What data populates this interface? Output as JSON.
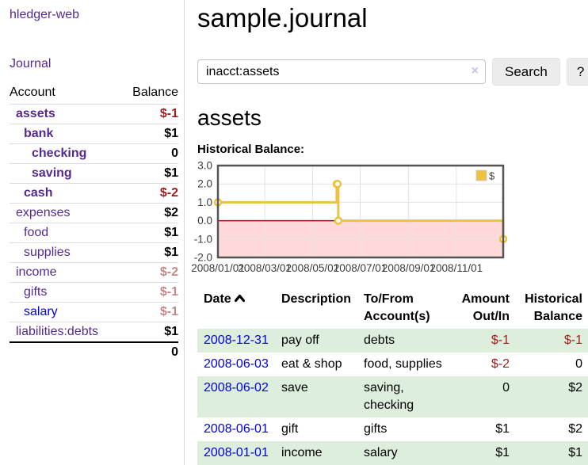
{
  "app": {
    "brand": "hledger-web",
    "nav_journal": "Journal"
  },
  "colors": {
    "link_purple": "#552a90",
    "link_blue": "#0000e6",
    "negative_strong": "#9e1c1c",
    "negative_muted": "#c28888",
    "row_stripe_green": "#ddeedd",
    "chart_line_gold": "#edc240",
    "chart_fill_pink": "#ffd9d9",
    "chart_zero_line": "#8b1010"
  },
  "sidebar": {
    "headers": {
      "account": "Account",
      "balance": "Balance"
    },
    "accounts": [
      {
        "name": "assets",
        "depth": 1,
        "emphasis": true,
        "link": "purple",
        "balance": "$-1",
        "balance_tone": "negative"
      },
      {
        "name": "bank",
        "depth": 2,
        "emphasis": true,
        "link": "purple",
        "balance": "$1",
        "balance_tone": "normal"
      },
      {
        "name": "checking",
        "depth": 3,
        "emphasis": true,
        "link": "purple",
        "balance": "0",
        "balance_tone": "normal"
      },
      {
        "name": "saving",
        "depth": 3,
        "emphasis": true,
        "link": "purple",
        "balance": "$1",
        "balance_tone": "normal"
      },
      {
        "name": "cash",
        "depth": 2,
        "emphasis": true,
        "link": "purple",
        "balance": "$-2",
        "balance_tone": "negative"
      },
      {
        "name": "expenses",
        "depth": 1,
        "emphasis": false,
        "link": "purple",
        "balance": "$2",
        "balance_tone": "normal"
      },
      {
        "name": "food",
        "depth": 2,
        "emphasis": false,
        "link": "purple",
        "balance": "$1",
        "balance_tone": "normal"
      },
      {
        "name": "supplies",
        "depth": 2,
        "emphasis": false,
        "link": "purple",
        "balance": "$1",
        "balance_tone": "normal"
      },
      {
        "name": "income",
        "depth": 1,
        "emphasis": false,
        "link": "purple",
        "balance": "$-2",
        "balance_tone": "negative-muted"
      },
      {
        "name": "gifts",
        "depth": 2,
        "emphasis": false,
        "link": "purple",
        "balance": "$-1",
        "balance_tone": "negative-muted"
      },
      {
        "name": "salary",
        "depth": 2,
        "emphasis": false,
        "link": "blue",
        "balance": "$-1",
        "balance_tone": "negative-muted"
      },
      {
        "name": "liabilities:debts",
        "depth": 1,
        "emphasis": false,
        "link": "purple",
        "balance": "$1",
        "balance_tone": "normal"
      }
    ],
    "total": "0"
  },
  "main": {
    "title": "sample.journal",
    "search": {
      "query": "inacct:assets",
      "clear_label": "×",
      "button": "Search",
      "help": "?"
    },
    "account_heading": "assets",
    "chart_label": "Historical Balance:"
  },
  "chart_data": {
    "type": "line",
    "step": true,
    "title": "Historical Balance",
    "ylim": [
      -2,
      3
    ],
    "xlim_days": [
      0,
      365
    ],
    "grid": true,
    "negative_region_shaded": true,
    "legend": {
      "position": "top-right",
      "label": "$"
    },
    "y_ticks": [
      {
        "value": 3,
        "label": "3.0"
      },
      {
        "value": 2,
        "label": "2.0"
      },
      {
        "value": 1,
        "label": "1.0"
      },
      {
        "value": 0,
        "label": "0.0"
      },
      {
        "value": -1,
        "label": "-1.0"
      },
      {
        "value": -2,
        "label": "-2.0"
      }
    ],
    "x_ticks": [
      {
        "day": 0,
        "label": "2008/01/01"
      },
      {
        "day": 60,
        "label": "2008/03/01"
      },
      {
        "day": 121,
        "label": "2008/05/01"
      },
      {
        "day": 182,
        "label": "2008/07/01"
      },
      {
        "day": 244,
        "label": "2008/09/01"
      },
      {
        "day": 305,
        "label": "2008/11/01"
      }
    ],
    "series": [
      {
        "name": "$",
        "points": [
          {
            "date": "2008-01-01",
            "day": 0,
            "value": 1
          },
          {
            "date": "2008-06-01",
            "day": 152,
            "value": 2
          },
          {
            "date": "2008-06-02",
            "day": 153,
            "value": 2
          },
          {
            "date": "2008-06-03",
            "day": 154,
            "value": 0
          },
          {
            "date": "2008-12-31",
            "day": 365,
            "value": -1
          }
        ]
      }
    ]
  },
  "register": {
    "columns": [
      {
        "label": "Date",
        "align": "left",
        "sorted": "ascending"
      },
      {
        "label": "Description",
        "align": "left"
      },
      {
        "label": "To/From Account(s)",
        "align": "left"
      },
      {
        "label": "Amount Out/In",
        "align": "right"
      },
      {
        "label": "Historical Balance",
        "align": "right"
      }
    ],
    "rows": [
      {
        "date": "2008-12-31",
        "description": "pay off",
        "accounts": "debts",
        "amount": "$-1",
        "amount_tone": "negative",
        "balance": "$-1",
        "balance_tone": "negative"
      },
      {
        "date": "2008-06-03",
        "description": "eat & shop",
        "accounts": "food, supplies",
        "amount": "$-2",
        "amount_tone": "negative",
        "balance": "0",
        "balance_tone": "normal"
      },
      {
        "date": "2008-06-02",
        "description": "save",
        "accounts": "saving, checking",
        "amount": "0",
        "amount_tone": "normal",
        "balance": "$2",
        "balance_tone": "normal"
      },
      {
        "date": "2008-06-01",
        "description": "gift",
        "accounts": "gifts",
        "amount": "$1",
        "amount_tone": "normal",
        "balance": "$2",
        "balance_tone": "normal"
      },
      {
        "date": "2008-01-01",
        "description": "income",
        "accounts": "salary",
        "amount": "$1",
        "amount_tone": "normal",
        "balance": "$1",
        "balance_tone": "normal"
      }
    ]
  }
}
